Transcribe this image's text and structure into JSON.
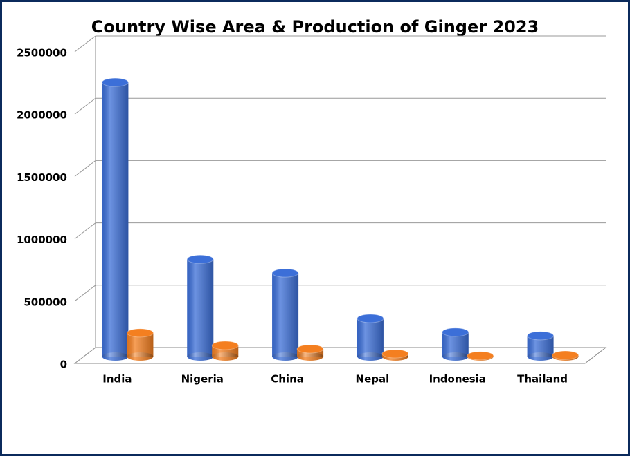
{
  "chart_data": {
    "type": "bar3d",
    "title": "Country Wise Area & Production of Ginger 2023",
    "categories": [
      "India",
      "Nigeria",
      "China",
      "Nepal",
      "Indonesia",
      "Thailand"
    ],
    "series": [
      {
        "color": "#3c6fd8",
        "values": [
          2200000,
          780000,
          670000,
          305000,
          195000,
          167000
        ]
      },
      {
        "color": "#f47f20",
        "values": [
          189000,
          89000,
          61000,
          22000,
          6000,
          11000
        ]
      }
    ],
    "ylim": [
      0,
      2500000
    ],
    "yticks": [
      0,
      500000,
      1000000,
      1500000,
      2000000,
      2500000
    ],
    "grid": true
  }
}
